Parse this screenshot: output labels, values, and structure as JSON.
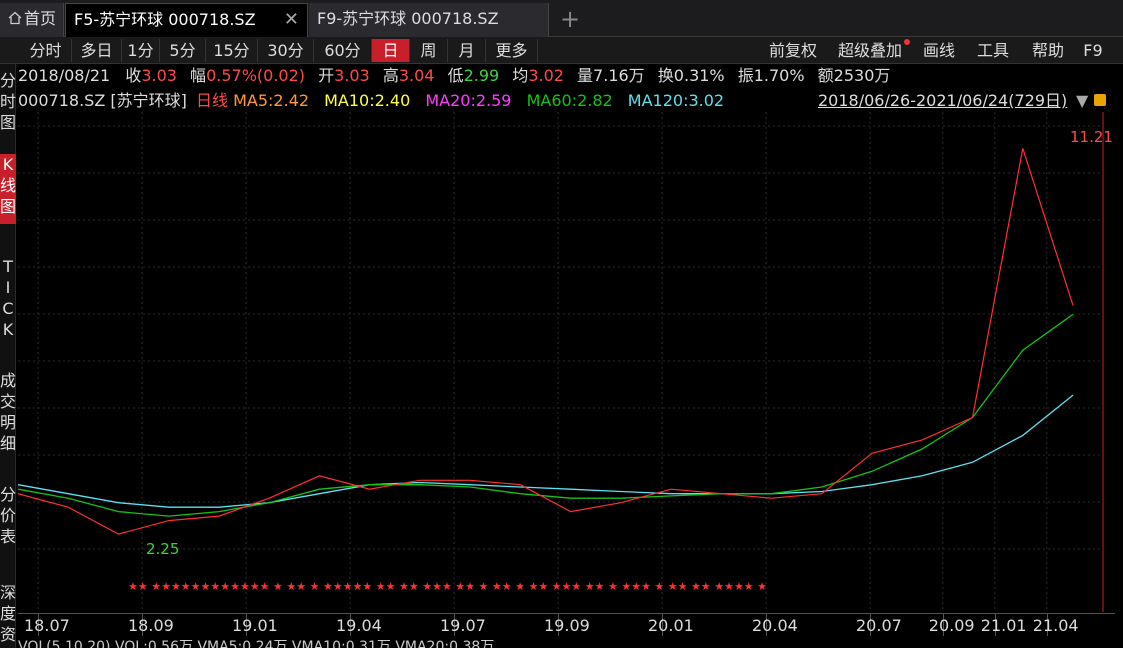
{
  "tabs": {
    "home": "首页",
    "active": "F5-苏宁环球 000718.SZ",
    "other": "F9-苏宁环球 000718.SZ"
  },
  "toolbar": {
    "periods": [
      "分时",
      "多日",
      "1分",
      "5分",
      "15分",
      "30分",
      "60分",
      "日",
      "周",
      "月",
      "更多"
    ],
    "active_period": "日",
    "right": [
      "前复权",
      "超级叠加",
      "画线",
      "工具",
      "帮助",
      "F9"
    ]
  },
  "sidebar": [
    {
      "label": "分时图",
      "active": false
    },
    {
      "label": "K线图",
      "active": true
    },
    {
      "label": "TICK",
      "active": false
    },
    {
      "label": "成交明细",
      "active": false
    },
    {
      "label": "分价表",
      "active": false
    },
    {
      "label": "深度资",
      "active": false
    }
  ],
  "info": {
    "date": "2018/08/21",
    "close_label": "收",
    "close": "3.03",
    "change_label": "幅",
    "change": "0.57%(0.02)",
    "open_label": "开",
    "open": "3.03",
    "high_label": "高",
    "high": "3.04",
    "low_label": "低",
    "low": "2.99",
    "avg_label": "均",
    "avg": "3.02",
    "vol_label": "量",
    "vol": "7.16万",
    "turnover_label": "换",
    "turnover": "0.31%",
    "amp_label": "振",
    "amp": "1.70%",
    "amount_label": "额",
    "amount": "2530万"
  },
  "ma": {
    "code": "000718.SZ",
    "name": "[苏宁环球]",
    "period": "日线",
    "ma5": "MA5:2.42",
    "ma10": "MA10:2.40",
    "ma20": "MA20:2.59",
    "ma60": "MA60:2.82",
    "ma120": "MA120:3.02",
    "range": "2018/06/26-2021/06/24(729日)"
  },
  "colors": {
    "ma5": "#ff9a2e",
    "ma10": "#ffff3c",
    "ma20": "#ff3cff",
    "ma60": "#16c216",
    "ma120": "#5ee0f0",
    "up": "#ff3030",
    "down": "#3fd13f",
    "accent": "#c8202a"
  },
  "chart_data": {
    "type": "line",
    "high_label": "11.21",
    "low_label": "2.25",
    "x_ticks": [
      "18.07",
      "18.09",
      "19.01",
      "19.04",
      "19.07",
      "19.09",
      "20.01",
      "20.04",
      "20.07",
      "20.09",
      "21.01",
      "21.04"
    ],
    "x_pos": [
      0.0,
      0.1,
      0.2,
      0.3,
      0.4,
      0.5,
      0.6,
      0.7,
      0.8,
      0.87,
      0.92,
      0.97
    ],
    "price_min": 2.0,
    "price_max": 11.5,
    "ma120": [
      3.5,
      3.3,
      3.1,
      3.0,
      3.0,
      3.1,
      3.3,
      3.5,
      3.55,
      3.5,
      3.45,
      3.4,
      3.35,
      3.3,
      3.3,
      3.3,
      3.35,
      3.5,
      3.7,
      4.0,
      4.6,
      5.5
    ],
    "ma60": [
      3.4,
      3.2,
      2.9,
      2.8,
      2.9,
      3.1,
      3.4,
      3.5,
      3.5,
      3.45,
      3.3,
      3.2,
      3.2,
      3.25,
      3.3,
      3.3,
      3.45,
      3.8,
      4.3,
      5.0,
      6.5,
      7.3
    ],
    "price": [
      3.3,
      3.0,
      2.4,
      2.7,
      2.8,
      3.2,
      3.7,
      3.4,
      3.6,
      3.6,
      3.5,
      2.9,
      3.1,
      3.4,
      3.3,
      3.2,
      3.3,
      4.2,
      4.5,
      5.0,
      11.0,
      7.5
    ],
    "stars": "★★ ★★★★★★★★★★★★ ★ ★★ ★ ★★★★★ ★★ ★★ ★★★ ★★ ★ ★★ ★ ★★ ★★★ ★★ ★ ★★★ ★ ★★ ★★ ★★★★ ★"
  },
  "bottom": "VOL(5,10,20)  VOL:0.56万  VMA5:0.24万  VMA10:0.31万  VMA20:0.38万"
}
